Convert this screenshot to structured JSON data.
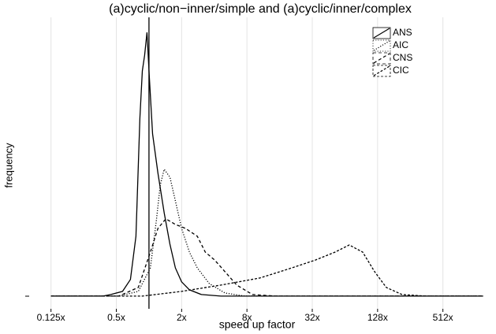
{
  "chart_data": {
    "type": "line",
    "title": "(a)cyclic/non−inner/simple and (a)cyclic/inner/complex",
    "x_label": "speed up factor",
    "y_label": "frequency",
    "log_x": true,
    "grid": true,
    "legend": "top-right",
    "reference_x": 1,
    "xlim": [
      0.08,
      1250
    ],
    "ylim": [
      -0.048,
      1.057
    ],
    "xticks": [
      {
        "value": 0.125,
        "label": "0.125x"
      },
      {
        "value": 0.5,
        "label": "0.5x"
      },
      {
        "value": 2,
        "label": "2x"
      },
      {
        "value": 8,
        "label": "8x"
      },
      {
        "value": 32,
        "label": "32x"
      },
      {
        "value": 128,
        "label": "128x"
      },
      {
        "value": 512,
        "label": "512x"
      }
    ],
    "series": [
      {
        "name": "ANS",
        "color": "#000000",
        "linestyle": "solid",
        "x": [
          0.125,
          0.376,
          0.445,
          0.571,
          0.675,
          0.759,
          0.825,
          0.868,
          0.912,
          0.959,
          1.01,
          1.08,
          1.21,
          1.38,
          1.56,
          1.75,
          2,
          2.36,
          3.04,
          4.61,
          1200
        ],
        "values": [
          0,
          0,
          0.006,
          0.018,
          0.063,
          0.227,
          0.675,
          0.854,
          0.913,
          1,
          0.824,
          0.615,
          0.466,
          0.316,
          0.197,
          0.107,
          0.054,
          0.024,
          0.006,
          0,
          0
        ]
      },
      {
        "name": "AIC",
        "color": "#000000",
        "linestyle": "dotted",
        "x": [
          0.125,
          0.526,
          0.798,
          1.03,
          1.17,
          1.27,
          1.38,
          1.56,
          1.75,
          2,
          2.36,
          2.79,
          3.59,
          5.01,
          7.61,
          1200
        ],
        "values": [
          0,
          0,
          0.018,
          0.107,
          0.287,
          0.421,
          0.481,
          0.451,
          0.361,
          0.257,
          0.167,
          0.107,
          0.048,
          0.012,
          0,
          0
        ]
      },
      {
        "name": "CNS",
        "color": "#000000",
        "linestyle": "dashed",
        "x": [
          0.125,
          0.526,
          0.798,
          1.03,
          1.21,
          1.43,
          1.75,
          2.17,
          2.79,
          3.3,
          4.03,
          5.01,
          6.44,
          8.99,
          14.8,
          1200
        ],
        "values": [
          0,
          0,
          0.033,
          0.167,
          0.257,
          0.293,
          0.272,
          0.257,
          0.227,
          0.167,
          0.137,
          0.093,
          0.042,
          0.006,
          0,
          0
        ]
      },
      {
        "name": "CIC",
        "color": "#000000",
        "linestyle": "longdash",
        "x": [
          0.125,
          0.868,
          2,
          4.61,
          10.6,
          20.7,
          34.2,
          52,
          70.2,
          93.2,
          120,
          154,
          215,
          355,
          1200
        ],
        "values": [
          0,
          0,
          0.018,
          0.042,
          0.069,
          0.107,
          0.137,
          0.167,
          0.194,
          0.167,
          0.093,
          0.033,
          0.006,
          0,
          0
        ]
      }
    ]
  }
}
